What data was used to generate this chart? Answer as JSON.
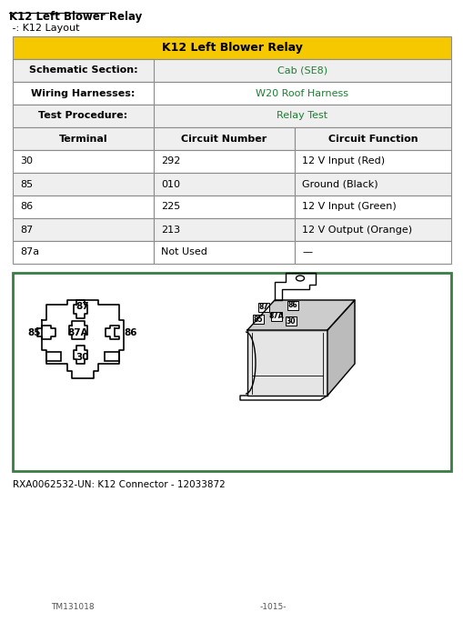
{
  "title": "K12 Left Blower Relay",
  "subtitle": " -: K12 Layout",
  "table_header": "K12 Left Blower Relay",
  "table_header_bg": "#F5C800",
  "table_border": "#8B8B8B",
  "table_alt_bg": "#EFEFEF",
  "table_white_bg": "#FFFFFF",
  "col1_label": "Schematic Section:",
  "col1_value": "Cab (SE8)",
  "col2_label": "Wiring Harnesses:",
  "col2_value": "W20 Roof Harness",
  "col3_label": "Test Procedure:",
  "col3_value": "Relay Test",
  "link_color": "#1e7e34",
  "header_row": [
    "Terminal",
    "Circuit Number",
    "Circuit Function"
  ],
  "data_rows": [
    [
      "30",
      "292",
      "12 V Input (Red)"
    ],
    [
      "85",
      "010",
      "Ground (Black)"
    ],
    [
      "86",
      "225",
      "12 V Input (Green)"
    ],
    [
      "87",
      "213",
      "12 V Output (Orange)"
    ],
    [
      "87a",
      "Not Used",
      "—"
    ]
  ],
  "image_caption": "RXA0062532-UN: K12 Connector - 12033872",
  "image_box_color": "#3a7d44",
  "font_color": "#000000",
  "title_color": "#000000",
  "bg_color": "#FFFFFF",
  "footer_left": "TM131018",
  "footer_right": "-1015-"
}
